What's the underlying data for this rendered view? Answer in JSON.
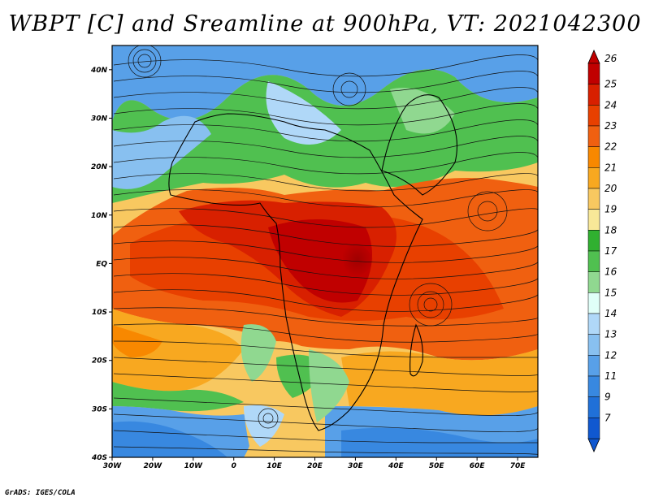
{
  "title": "WBPT [C] and Sreamline at 900hPa, VT: 2021042300",
  "credit": "GrADS: IGES/COLA",
  "map": {
    "lon_range": [
      -30,
      75
    ],
    "lat_range": [
      -40,
      45
    ],
    "lat_ticks": [
      {
        "value": 40,
        "label": "40N"
      },
      {
        "value": 30,
        "label": "30N"
      },
      {
        "value": 20,
        "label": "20N"
      },
      {
        "value": 10,
        "label": "10N"
      },
      {
        "value": 0,
        "label": "EQ"
      },
      {
        "value": -10,
        "label": "10S"
      },
      {
        "value": -20,
        "label": "20S"
      },
      {
        "value": -30,
        "label": "30S"
      },
      {
        "value": -40,
        "label": "40S"
      }
    ],
    "lon_ticks": [
      {
        "value": -30,
        "label": "30W"
      },
      {
        "value": -20,
        "label": "20W"
      },
      {
        "value": -10,
        "label": "10W"
      },
      {
        "value": 0,
        "label": "0"
      },
      {
        "value": 10,
        "label": "10E"
      },
      {
        "value": 20,
        "label": "20E"
      },
      {
        "value": 30,
        "label": "30E"
      },
      {
        "value": 40,
        "label": "40E"
      },
      {
        "value": 50,
        "label": "50E"
      },
      {
        "value": 60,
        "label": "60E"
      },
      {
        "value": 70,
        "label": "70E"
      }
    ]
  },
  "colorbar": {
    "labels": [
      "26",
      "25",
      "24",
      "23",
      "22",
      "21",
      "20",
      "19",
      "18",
      "17",
      "16",
      "15",
      "14",
      "13",
      "12",
      "11",
      "9",
      "7"
    ],
    "colors": [
      "#c00000",
      "#d82000",
      "#e84000",
      "#f06010",
      "#f88800",
      "#f8a820",
      "#f8c860",
      "#f8e898",
      "#30b030",
      "#50c050",
      "#90d890",
      "#e0fff8",
      "#b0d8f8",
      "#88c0f0",
      "#58a0e8",
      "#3888e0",
      "#2070d8",
      "#1058d0"
    ]
  }
}
